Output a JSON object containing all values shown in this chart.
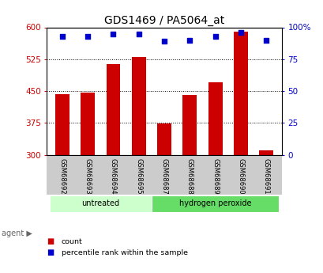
{
  "title": "GDS1469 / PA5064_at",
  "categories": [
    "GSM68692",
    "GSM68693",
    "GSM68694",
    "GSM68695",
    "GSM68687",
    "GSM68688",
    "GSM68689",
    "GSM68690",
    "GSM68691"
  ],
  "bar_values": [
    443,
    447,
    513,
    530,
    374,
    440,
    470,
    590,
    310
  ],
  "percentile_values": [
    93,
    93,
    95,
    95,
    89,
    90,
    93,
    96,
    90
  ],
  "bar_color": "#cc0000",
  "dot_color": "#0000cc",
  "ylim_left": [
    300,
    600
  ],
  "ylim_right": [
    0,
    100
  ],
  "yticks_left": [
    300,
    375,
    450,
    525,
    600
  ],
  "yticks_right": [
    0,
    25,
    50,
    75,
    100
  ],
  "ytick_labels_right": [
    "0",
    "25",
    "50",
    "75",
    "100%"
  ],
  "group_labels": [
    "untreated",
    "hydrogen peroxide"
  ],
  "group_ranges": [
    [
      0,
      4
    ],
    [
      4,
      9
    ]
  ],
  "group_colors_light": [
    "#ccffcc",
    "#66dd66"
  ],
  "agent_label": "agent",
  "legend_items": [
    "count",
    "percentile rank within the sample"
  ],
  "legend_colors": [
    "#cc0000",
    "#0000cc"
  ],
  "background_color": "#ffffff",
  "plot_bg_color": "#ffffff",
  "tick_label_area_color": "#cccccc",
  "xlabel_color": "#cc0000",
  "right_ylabel_color": "#0000cc",
  "grid_color": "#000000",
  "bar_bottom": 300
}
